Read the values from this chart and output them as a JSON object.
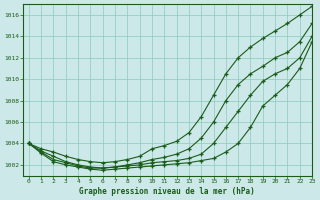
{
  "title": "Graphe pression niveau de la mer (hPa)",
  "x_ticks": [
    0,
    1,
    2,
    3,
    4,
    5,
    6,
    7,
    8,
    9,
    10,
    11,
    12,
    13,
    14,
    15,
    16,
    17,
    18,
    19,
    20,
    21,
    22,
    23
  ],
  "xlim": [
    -0.5,
    23
  ],
  "ylim": [
    1001.0,
    1017.0
  ],
  "yticks": [
    1002,
    1004,
    1006,
    1008,
    1010,
    1012,
    1014,
    1016
  ],
  "bg_color": "#cce8e8",
  "grid_color": "#88ccbb",
  "line_color": "#1a5c1a",
  "line1": [
    1004.0,
    1003.5,
    1003.2,
    1002.8,
    1002.5,
    1002.3,
    1002.2,
    1002.3,
    1002.5,
    1002.8,
    1003.5,
    1003.8,
    1004.2,
    1005.0,
    1006.5,
    1008.5,
    1010.5,
    1012.0,
    1013.0,
    1013.8,
    1014.5,
    1015.2,
    1016.0,
    1016.8
  ],
  "line2": [
    1004.0,
    1003.3,
    1002.8,
    1002.3,
    1002.0,
    1001.8,
    1001.7,
    1001.8,
    1002.0,
    1002.2,
    1002.5,
    1002.7,
    1003.0,
    1003.5,
    1004.5,
    1006.0,
    1008.0,
    1009.5,
    1010.5,
    1011.2,
    1012.0,
    1012.5,
    1013.5,
    1015.2
  ],
  "line3": [
    1004.0,
    1003.2,
    1002.5,
    1002.2,
    1001.9,
    1001.7,
    1001.7,
    1001.8,
    1001.9,
    1002.0,
    1002.2,
    1002.3,
    1002.4,
    1002.6,
    1003.0,
    1004.0,
    1005.5,
    1007.0,
    1008.5,
    1009.8,
    1010.5,
    1011.0,
    1012.0,
    1014.0
  ],
  "line4": [
    1004.0,
    1003.1,
    1002.3,
    1002.0,
    1001.8,
    1001.6,
    1001.5,
    1001.6,
    1001.7,
    1001.8,
    1001.9,
    1002.0,
    1002.1,
    1002.2,
    1002.4,
    1002.6,
    1003.2,
    1004.0,
    1005.5,
    1007.5,
    1008.5,
    1009.5,
    1011.0,
    1013.5
  ]
}
